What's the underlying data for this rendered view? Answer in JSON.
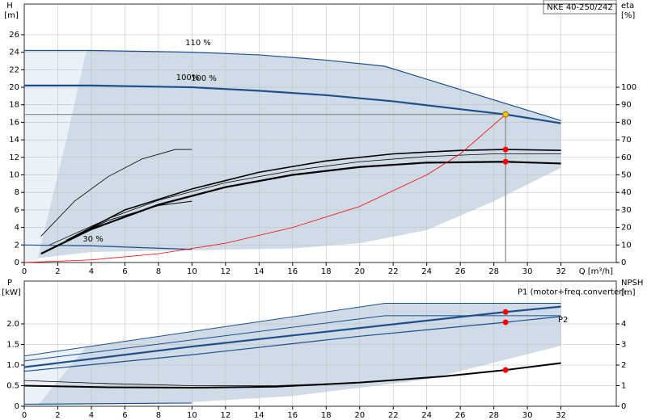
{
  "title": "NKE 40-250/242",
  "chart_data": [
    {
      "type": "line",
      "ylabel": "H",
      "yunit": "[m]",
      "y2label": "eta",
      "y2unit": "[%]",
      "xlabel": "Q [m³/h]",
      "xlim": [
        0,
        35.3
      ],
      "xticks": [
        0,
        2,
        4,
        6,
        8,
        10,
        12,
        14,
        16,
        18,
        20,
        22,
        24,
        26,
        28,
        30,
        32
      ],
      "ylim": [
        0,
        29.5
      ],
      "yticks": [
        0,
        2,
        4,
        6,
        8,
        10,
        12,
        14,
        16,
        18,
        20,
        22,
        24,
        26
      ],
      "y2lim": [
        0,
        147.5
      ],
      "y2ticks": [
        0,
        10,
        20,
        30,
        40,
        50,
        60,
        70,
        80,
        90,
        100
      ],
      "grid": true,
      "regions": [
        {
          "color": "#eaf1f8",
          "x": [
            0,
            3.7,
            0.8,
            0
          ],
          "values": [
            24.2,
            24.2,
            0,
            0
          ]
        },
        {
          "color": "#cfdbe6",
          "x": [
            0.8,
            1.5,
            2.5,
            3.7,
            10,
            14,
            18,
            21.5,
            32,
            32,
            28,
            24,
            20,
            16,
            10,
            4
          ],
          "values": [
            0.5,
            6,
            14,
            24.2,
            24.0,
            23.7,
            23.1,
            22.4,
            16.2,
            10.8,
            7,
            3.7,
            2.2,
            1.6,
            1.4,
            1.2
          ]
        }
      ],
      "series": [
        {
          "color": "#1f4e8c",
          "width": 1.2,
          "x": [
            0,
            4,
            10,
            14,
            18,
            21.5,
            32
          ],
          "values": [
            24.2,
            24.2,
            24.0,
            23.7,
            23.1,
            22.4,
            16.2
          ]
        },
        {
          "color": "#1f4e8c",
          "width": 2.2,
          "x": [
            0,
            4,
            10,
            14,
            18,
            22,
            26,
            28.7,
            32
          ],
          "values": [
            20.2,
            20.2,
            20.0,
            19.6,
            19.1,
            18.4,
            17.5,
            16.9,
            15.9
          ]
        },
        {
          "color": "#1f4e8c",
          "width": 1.2,
          "x": [
            0,
            4,
            10
          ],
          "values": [
            2,
            1.9,
            1.5
          ]
        },
        {
          "color": "#000000",
          "width": 1.6,
          "x": [
            2.5,
            6,
            10,
            14,
            18,
            22,
            26,
            28.7,
            32
          ],
          "values": [
            2.5,
            6,
            8.4,
            10.3,
            11.6,
            12.4,
            12.8,
            12.9,
            12.8
          ]
        },
        {
          "color": "#000000",
          "width": 2.2,
          "x": [
            1,
            4,
            8,
            12,
            16,
            20,
            24,
            28.7,
            32
          ],
          "values": [
            1,
            3.8,
            6.6,
            8.6,
            10,
            10.9,
            11.4,
            11.5,
            11.3
          ]
        },
        {
          "color": "#000000",
          "width": 0.8,
          "x": [
            1.5,
            5,
            8,
            12,
            16,
            20,
            24,
            28,
            32
          ],
          "values": [
            2,
            5,
            7.1,
            9.1,
            10.5,
            11.5,
            12.1,
            12.4,
            12.4
          ]
        },
        {
          "color": "#000000",
          "width": 0.8,
          "x": [
            1,
            3,
            5,
            7,
            9,
            10
          ],
          "values": [
            3,
            7,
            9.8,
            11.8,
            12.9,
            12.9
          ]
        },
        {
          "color": "#000000",
          "width": 1.0,
          "x": [
            2.5,
            5,
            8,
            10
          ],
          "values": [
            2.5,
            4.8,
            6.5,
            7
          ]
        },
        {
          "color": "#ff0000",
          "width": 0.8,
          "axis": "y2",
          "x": [
            0,
            4,
            8,
            12,
            16,
            20,
            24,
            26,
            28.7
          ],
          "values": [
            0,
            1.5,
            5,
            11,
            20,
            32,
            50,
            62,
            84.5
          ]
        }
      ],
      "duty_point": {
        "x": 28.7,
        "y": 16.9
      },
      "points": [
        {
          "color": "#f5c400",
          "x": 28.7,
          "y": 16.9
        },
        {
          "color": "#ff0000",
          "x": 28.7,
          "y": 12.9
        },
        {
          "color": "#ff0000",
          "x": 28.7,
          "y": 11.5
        }
      ],
      "annotations": [
        "110 %",
        "100%",
        "100 %",
        "30 %"
      ]
    },
    {
      "type": "line",
      "ylabel": "P",
      "yunit": "[kW]",
      "y2label": "NPSH",
      "y2unit": "[m]",
      "xlim": [
        0,
        35.3
      ],
      "xticks": [
        0,
        2,
        4,
        6,
        8,
        10,
        12,
        14,
        16,
        18,
        20,
        22,
        24,
        26,
        28,
        30,
        32
      ],
      "ylim": [
        0,
        3.04
      ],
      "yticks": [
        0,
        0.5,
        {
          "value": 1,
          "label": "1.0"
        },
        1.5,
        {
          "value": 2,
          "label": "2.0"
        }
      ],
      "y2lim": [
        0,
        6.08
      ],
      "y2ticks": [
        0,
        1,
        2,
        3,
        4
      ],
      "grid": true,
      "regions": [
        {
          "color": "#eaf1f8",
          "x": [
            0,
            3.7,
            0.8,
            0
          ],
          "values": [
            1.22,
            1.45,
            0,
            0
          ]
        },
        {
          "color": "#cfdbe6",
          "x": [
            0.8,
            3.7,
            21.5,
            32,
            32,
            24,
            16,
            10,
            4
          ],
          "values": [
            0.02,
            1.45,
            2.5,
            2.5,
            1.47,
            0.65,
            0.25,
            0.1,
            0.05
          ]
        }
      ],
      "series": [
        {
          "color": "#1f4e8c",
          "width": 1.0,
          "x": [
            0,
            21.5,
            32
          ],
          "values": [
            1.22,
            2.5,
            2.5
          ]
        },
        {
          "color": "#1f4e8c",
          "width": 1.0,
          "x": [
            0,
            21.5,
            32
          ],
          "values": [
            1.1,
            2.2,
            2.2
          ]
        },
        {
          "name": "P1 (motor+freq.converter)",
          "color": "#1f4e8c",
          "width": 2.2,
          "x": [
            0,
            10,
            20,
            28.7,
            32
          ],
          "values": [
            0.95,
            1.45,
            1.9,
            2.29,
            2.42
          ]
        },
        {
          "name": "P2",
          "color": "#1f4e8c",
          "width": 1.2,
          "x": [
            0,
            10,
            20,
            28.7,
            32
          ],
          "values": [
            0.85,
            1.25,
            1.7,
            2.04,
            2.18
          ]
        },
        {
          "color": "#1f4e8c",
          "width": 1.2,
          "x": [
            0,
            10
          ],
          "values": [
            0.05,
            0.08
          ]
        },
        {
          "color": "#000000",
          "width": 2.0,
          "axis": "y2",
          "x": [
            0,
            5,
            10,
            15,
            20,
            25,
            28.7,
            32
          ],
          "values": [
            1.0,
            0.92,
            0.9,
            0.95,
            1.15,
            1.45,
            1.76,
            2.1
          ]
        },
        {
          "color": "#000000",
          "width": 0.8,
          "axis": "y2",
          "x": [
            0,
            5,
            10,
            15,
            20
          ],
          "values": [
            1.25,
            1.1,
            1.0,
            1.0,
            1.15
          ]
        }
      ],
      "points": [
        {
          "color": "#ff0000",
          "x": 28.7,
          "y": 2.29
        },
        {
          "color": "#ff0000",
          "x": 28.7,
          "y": 2.04
        },
        {
          "color": "#ff0000",
          "x": 28.7,
          "y": 1.76,
          "axis": "y2"
        }
      ]
    }
  ]
}
